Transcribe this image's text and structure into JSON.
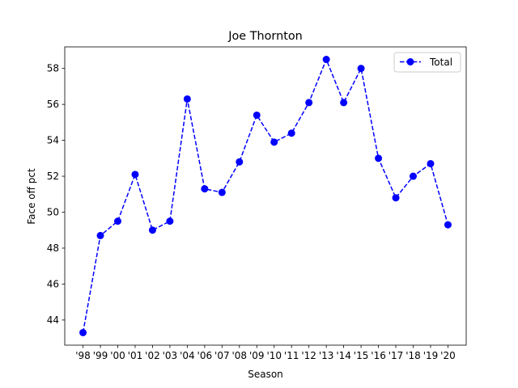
{
  "chart_data": {
    "type": "line",
    "title": "Joe Thornton",
    "xlabel": "Season",
    "ylabel": "Face off pct",
    "categories": [
      "'98",
      "'99",
      "'00",
      "'01",
      "'02",
      "'03",
      "'04",
      "'06",
      "'07",
      "'08",
      "'09",
      "'10",
      "'11",
      "'12",
      "'13",
      "'14",
      "'15",
      "'16",
      "'17",
      "'18",
      "'19",
      "'20"
    ],
    "yticks": [
      44,
      46,
      48,
      50,
      52,
      54,
      56,
      58
    ],
    "ylim": [
      42.6,
      59.2
    ],
    "grid": false,
    "legend_position": "top-right",
    "series": [
      {
        "name": "Total",
        "color": "#0000ff",
        "line_style": "dashed",
        "marker": "circle",
        "values": [
          43.3,
          48.7,
          49.5,
          52.1,
          49.0,
          49.5,
          56.3,
          51.3,
          51.1,
          52.8,
          55.4,
          53.9,
          54.4,
          56.1,
          58.5,
          56.1,
          58.0,
          53.0,
          50.8,
          52.0,
          52.7,
          49.3
        ]
      }
    ]
  }
}
